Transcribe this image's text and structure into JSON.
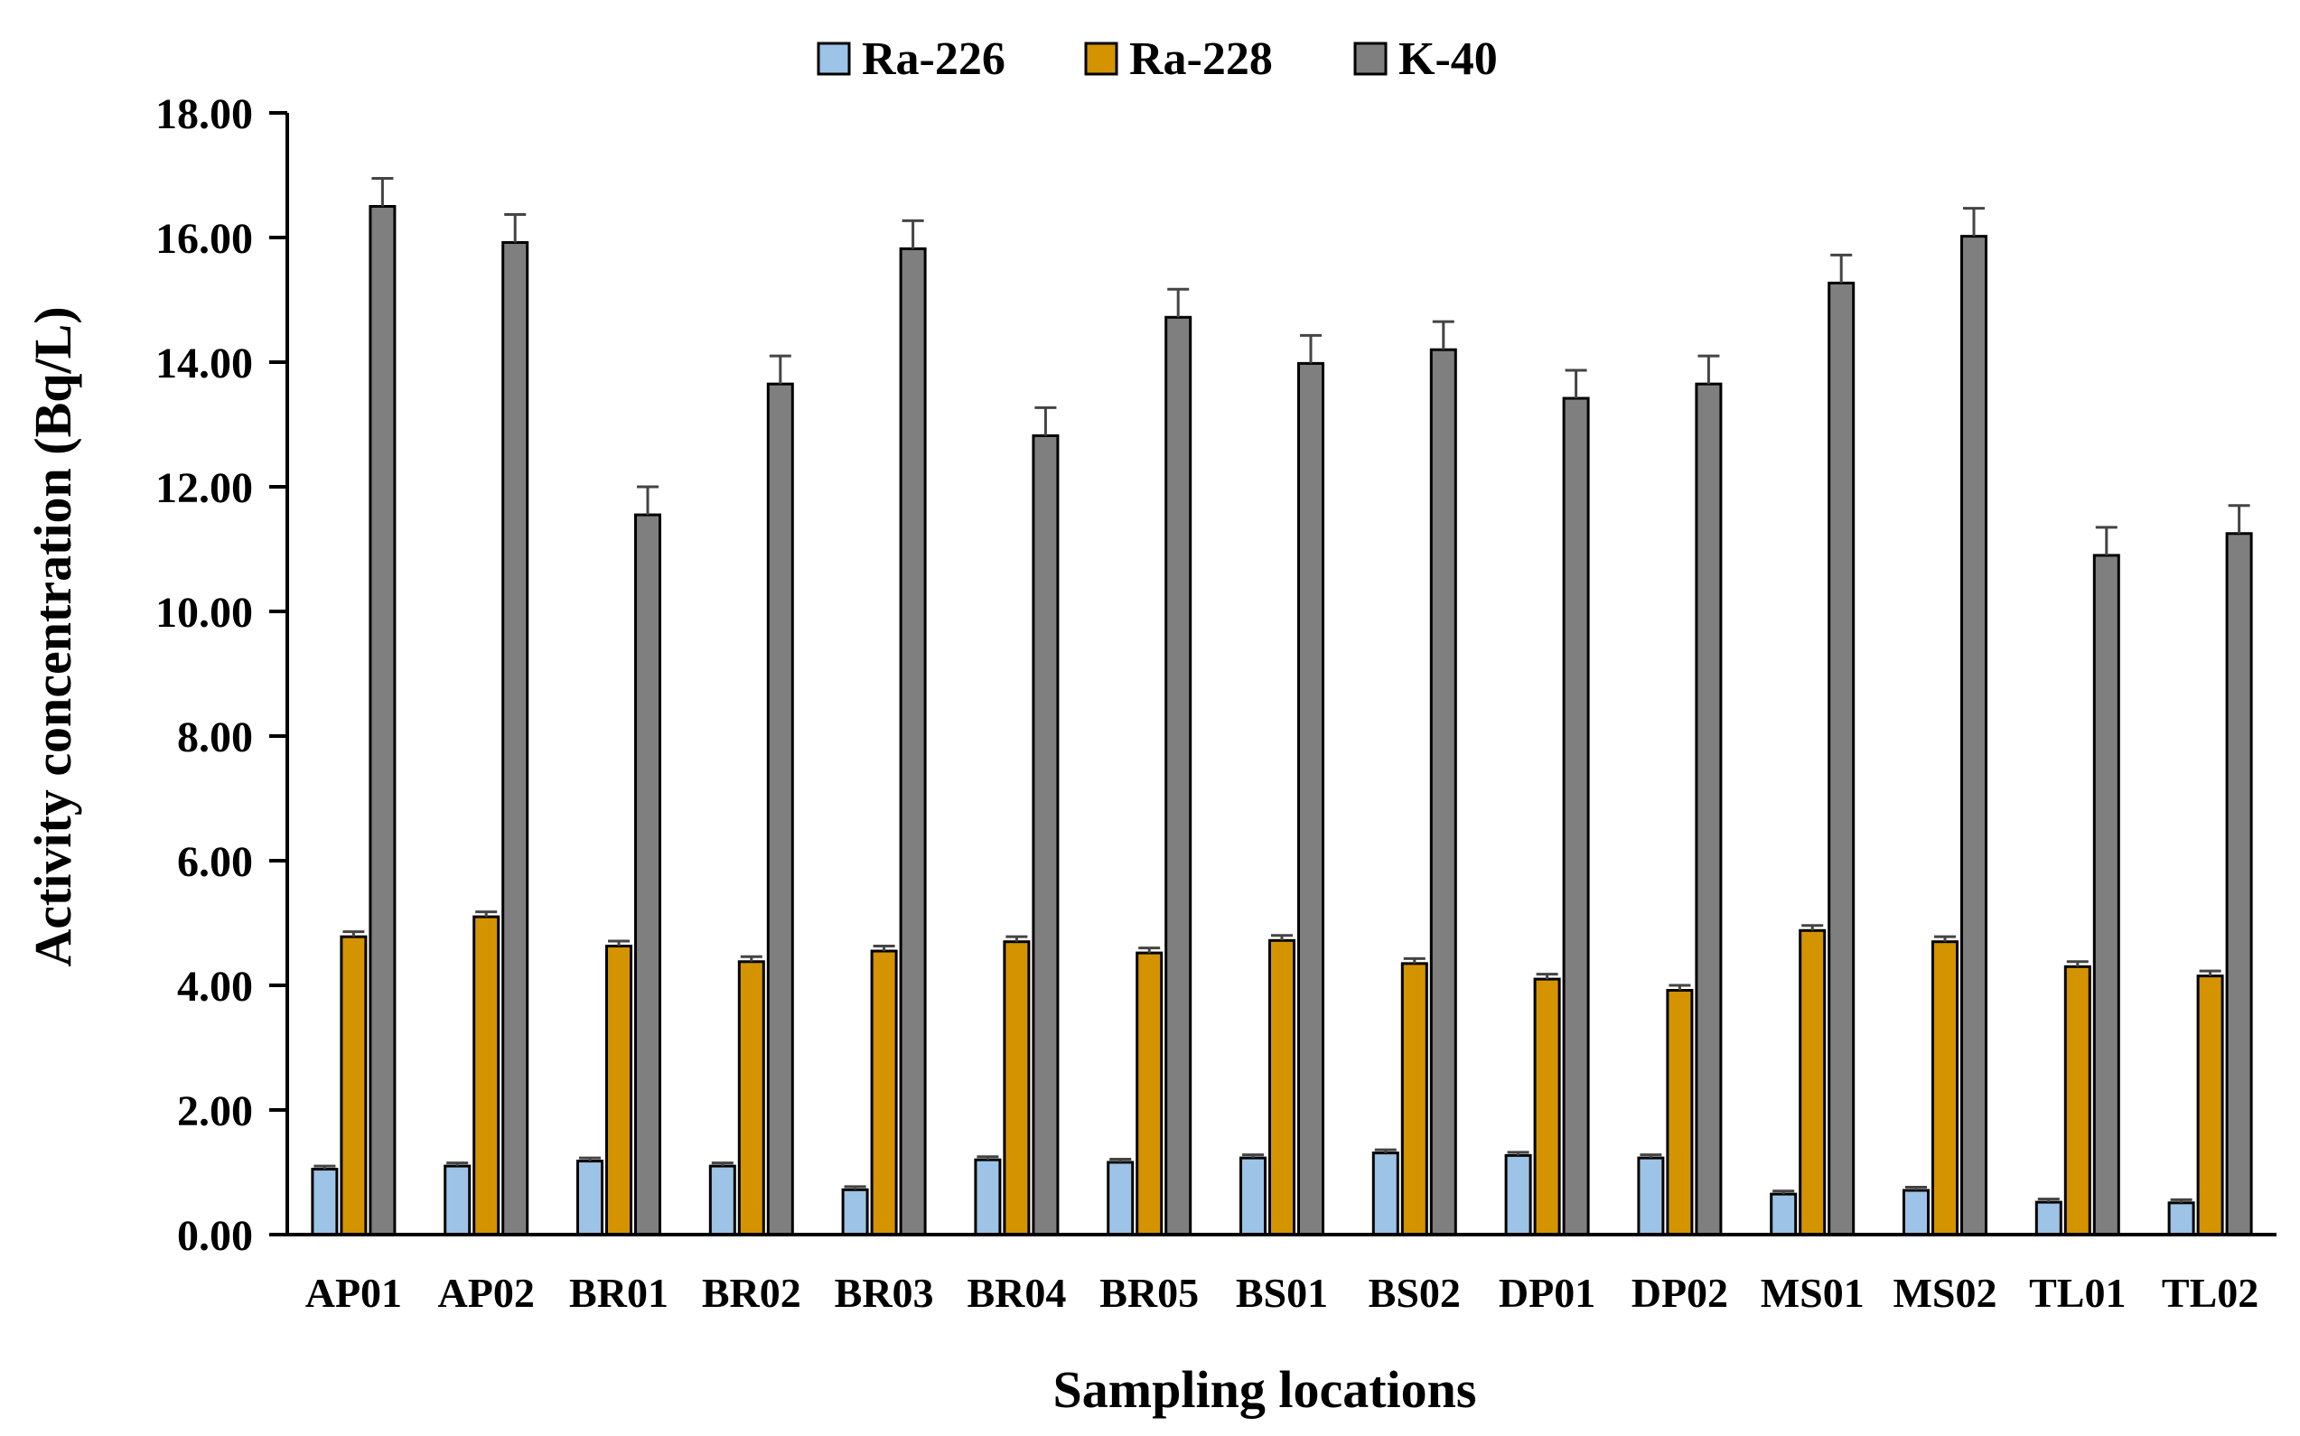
{
  "chart_data": {
    "type": "bar",
    "title": "",
    "xlabel": "Sampling locations",
    "ylabel": "Activity concentration (Bq/L)",
    "ylim": [
      0,
      18
    ],
    "yticks": [
      "0.00",
      "2.00",
      "4.00",
      "6.00",
      "8.00",
      "10.00",
      "12.00",
      "14.00",
      "16.00",
      "18.00"
    ],
    "grid": false,
    "legend_position": "top",
    "categories": [
      "AP01",
      "AP02",
      "BR01",
      "BR02",
      "BR03",
      "BR04",
      "BR05",
      "BS01",
      "BS02",
      "DP01",
      "DP02",
      "MS01",
      "MS02",
      "TL01",
      "TL02"
    ],
    "series": [
      {
        "name": "Ra-226",
        "color": "#9DC3E6",
        "values": [
          1.05,
          1.1,
          1.18,
          1.1,
          0.72,
          1.2,
          1.16,
          1.23,
          1.31,
          1.27,
          1.23,
          0.65,
          0.71,
          0.52,
          0.51
        ],
        "errors": [
          0.05,
          0.05,
          0.05,
          0.05,
          0.05,
          0.05,
          0.05,
          0.05,
          0.05,
          0.05,
          0.05,
          0.05,
          0.05,
          0.05,
          0.05
        ]
      },
      {
        "name": "Ra-228",
        "color": "#D49300",
        "values": [
          4.78,
          5.1,
          4.63,
          4.38,
          4.55,
          4.7,
          4.52,
          4.72,
          4.35,
          4.1,
          3.92,
          4.88,
          4.7,
          4.3,
          4.15
        ],
        "errors": [
          0.08,
          0.08,
          0.08,
          0.08,
          0.08,
          0.08,
          0.08,
          0.08,
          0.08,
          0.08,
          0.08,
          0.08,
          0.08,
          0.08,
          0.08
        ]
      },
      {
        "name": "K-40",
        "color": "#7F7F7F",
        "values": [
          16.5,
          15.92,
          11.55,
          13.65,
          15.82,
          12.82,
          14.72,
          13.98,
          14.2,
          13.42,
          13.65,
          15.27,
          16.02,
          10.9,
          11.25
        ],
        "errors": [
          0.45,
          0.45,
          0.45,
          0.45,
          0.45,
          0.45,
          0.45,
          0.45,
          0.45,
          0.45,
          0.45,
          0.45,
          0.45,
          0.45,
          0.45
        ]
      }
    ]
  }
}
